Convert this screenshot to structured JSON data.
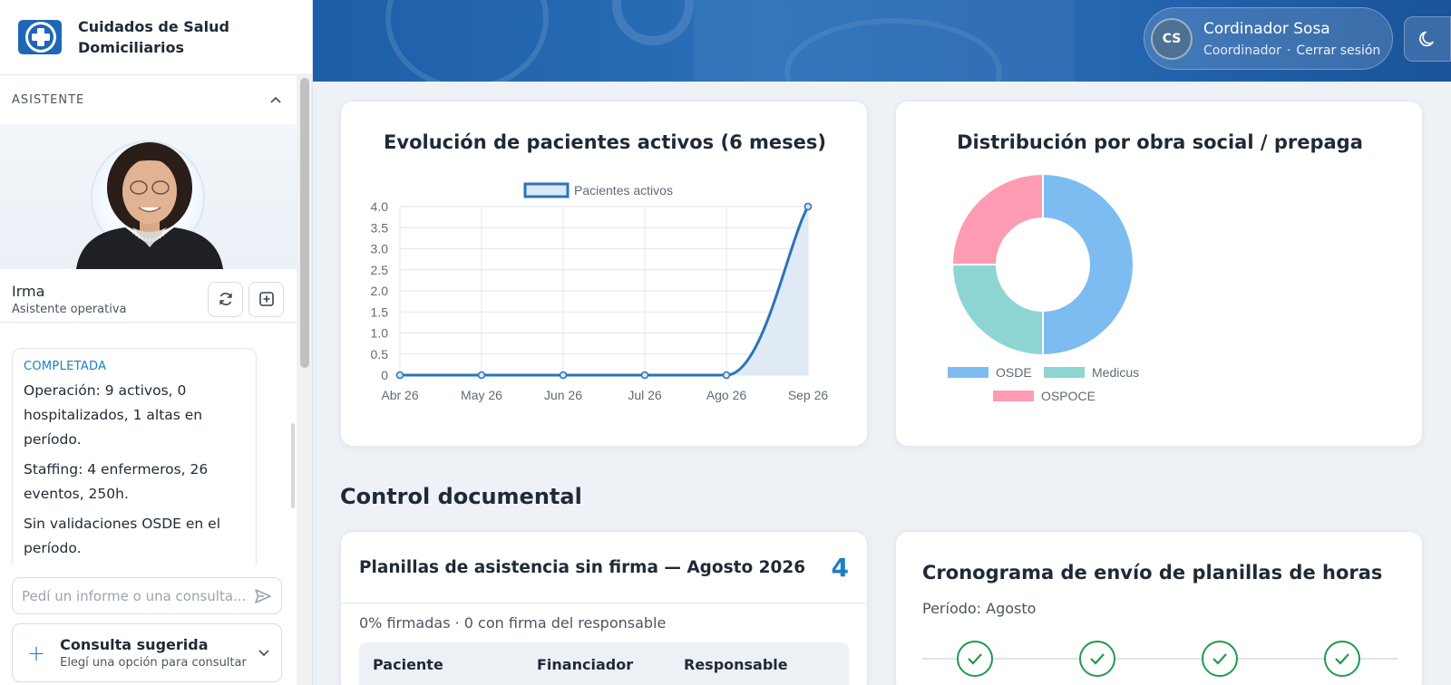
{
  "brand": {
    "name": "Cuidados de Salud Domiciliarios"
  },
  "assistant": {
    "section_label": "ASISTENTE",
    "name": "Irma",
    "role": "Asistente operativa",
    "message": {
      "status": "COMPLETADA",
      "paragraphs": [
        "Operación: 9 activos, 0 hospitalizados, 1 altas en período.",
        "Staffing: 4 enfermeros, 26 eventos, 250h.",
        "Sin validaciones OSDE en el período."
      ]
    },
    "input_placeholder": "Pedí un informe o una consulta...",
    "suggestion": {
      "title": "Consulta sugerida",
      "subtitle": "Elegí una opción para consultar"
    }
  },
  "user": {
    "initials": "CS",
    "name": "Cordinador Sosa",
    "role": "Coordinador",
    "logout_label": "Cerrar sesión"
  },
  "section_title": "Control documental",
  "firmas": {
    "title": "Planillas de asistencia sin firma — Agosto 2026",
    "count": "4",
    "stats": "0% firmadas · 0 con firma del responsable",
    "columns": [
      "Paciente",
      "Financiador",
      "Responsable"
    ]
  },
  "cronograma": {
    "title": "Cronograma de envío de planillas de horas",
    "period": "Período: Agosto",
    "steps_completed": [
      true,
      true,
      true,
      true
    ]
  },
  "chart_data": [
    {
      "type": "area",
      "title": "Evolución de pacientes activos (6 meses)",
      "categories": [
        "Abr 26",
        "May 26",
        "Jun 26",
        "Jul 26",
        "Ago 26",
        "Sep 26"
      ],
      "series": [
        {
          "name": "Pacientes activos",
          "values": [
            0,
            0,
            0,
            0,
            0,
            4
          ],
          "color": "#2b74b8"
        }
      ],
      "yticks": [
        "4.0",
        "3.5",
        "3.0",
        "2.5",
        "2.0",
        "1.5",
        "1.0",
        "0.5",
        "0"
      ],
      "ylim": [
        0,
        4
      ],
      "grid": true,
      "legend": "top"
    },
    {
      "type": "pie",
      "title": "Distribución por obra social / prepaga",
      "labels": [
        "OSDE",
        "Medicus",
        "OSPOCE"
      ],
      "values": [
        50,
        25,
        25
      ],
      "colors": [
        "#7dbcf1",
        "#8dd5d3",
        "#fd9bb2"
      ],
      "legend": "bottom"
    }
  ]
}
